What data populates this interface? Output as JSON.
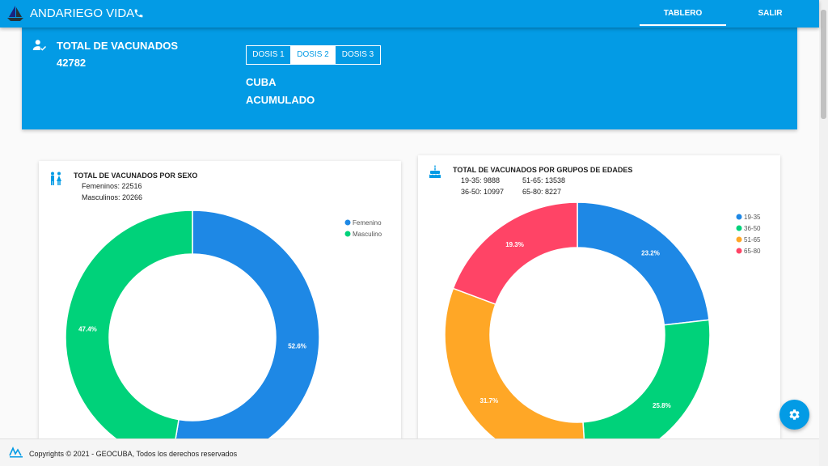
{
  "app": {
    "title": "ANDARIEGO VIDA"
  },
  "nav": {
    "tablero": "TABLERO",
    "salir": "SALIR"
  },
  "banner": {
    "total_label": "TOTAL DE VACUNADOS",
    "total_value": "42782",
    "dosis": [
      "DOSIS 1",
      "DOSIS 2",
      "DOSIS 3"
    ],
    "selected_dosis": "DOSIS 2",
    "region": "CUBA",
    "period": "ACUMULADO"
  },
  "card_sexo": {
    "title": "TOTAL DE VACUNADOS POR SEXO",
    "line1": "Femeninos: 22516",
    "line2": "Masculinos: 20266"
  },
  "card_edades": {
    "title": "TOTAL DE VACUNADOS POR GRUPOS DE EDADES",
    "stat_19_35": "19-35: 9888",
    "stat_51_65": "51-65: 13538",
    "stat_36_50": "36-50: 10997",
    "stat_65_80": "65-80: 8227"
  },
  "footer": {
    "text": "Copyrights © 2021 - GEOCUBA, Todos los derechos reservados"
  },
  "colors": {
    "primary": "#039be5",
    "femenino": "#1e88e5",
    "masculino": "#00d27a",
    "g19_35": "#1e88e5",
    "g36_50": "#00d27a",
    "g51_65": "#ffa726",
    "g65_80": "#ff4466"
  },
  "icons": {
    "logo": "sailboat-logo-icon",
    "phone": "phone-icon",
    "user_check": "user-check-icon",
    "wc": "wc-icon",
    "cake": "cake-icon",
    "settings": "gear-icon"
  },
  "chart_data": [
    {
      "type": "pie",
      "categories": [
        "Femenino",
        "Masculino"
      ],
      "values": [
        22516,
        20266
      ],
      "labels": [
        "52.6%",
        "47.4%"
      ]
    },
    {
      "type": "pie",
      "categories": [
        "19-35",
        "36-50",
        "51-65",
        "65-80"
      ],
      "values": [
        9888,
        10997,
        13538,
        8227
      ],
      "labels": [
        "23.2%",
        "25.8%",
        "31.7%",
        "19.3%"
      ]
    }
  ]
}
